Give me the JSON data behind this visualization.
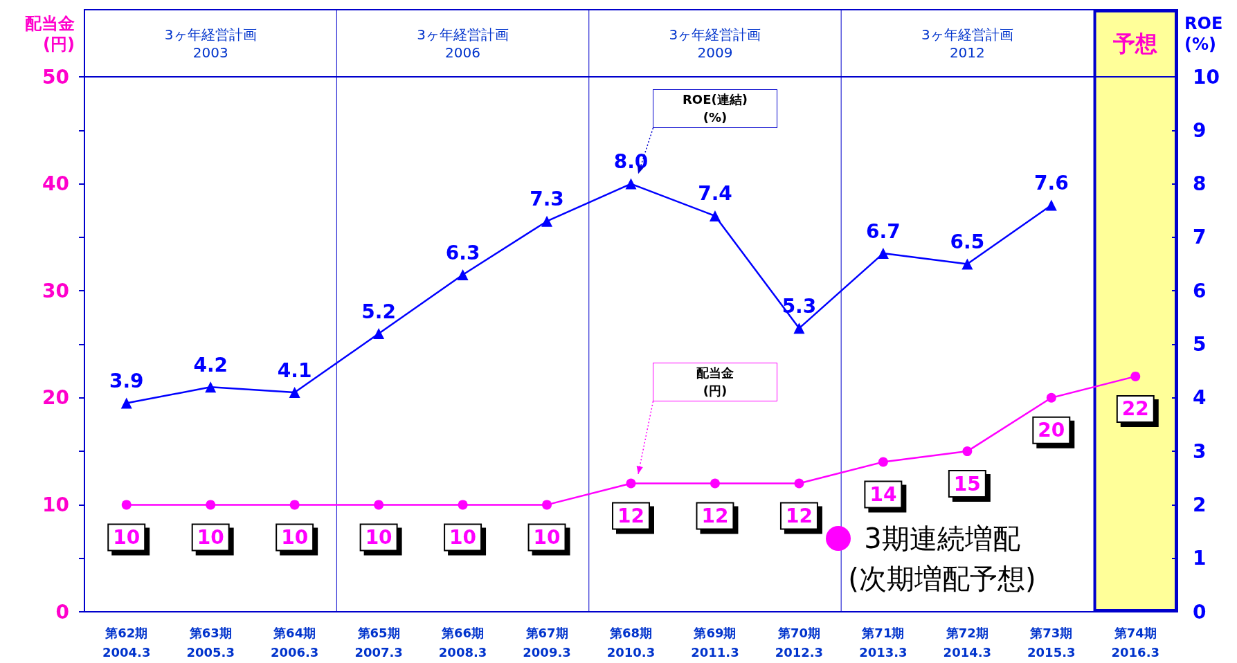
{
  "chart_data": {
    "type": "line",
    "categories": [
      "第62期\n2004.3",
      "第63期\n2005.3",
      "第64期\n2006.3",
      "第65期\n2007.3",
      "第66期\n2008.3",
      "第67期\n2009.3",
      "第68期\n2010.3",
      "第69期\n2011.3",
      "第70期\n2012.3",
      "第71期\n2013.3",
      "第72期\n2014.3",
      "第73期\n2015.3",
      "第74期\n2016.3"
    ],
    "ylabel": "配当金\n(円)",
    "y2label": "ROE\n(%)",
    "series": [
      {
        "color": "#0000ff",
        "axis": "y2",
        "marker": "triangle",
        "values": [
          3.9,
          4.2,
          4.1,
          5.2,
          6.3,
          7.3,
          8.0,
          7.4,
          5.3,
          6.7,
          6.5,
          7.6,
          null
        ],
        "value_labels": [
          "3.9",
          "4.2",
          "4.1",
          "5.2",
          "6.3",
          "7.3",
          "8.0",
          "7.4",
          "5.3",
          "6.7",
          "6.5",
          "7.6",
          null
        ]
      },
      {
        "color": "#ff00ff",
        "marker": "circle",
        "values": [
          10,
          10,
          10,
          10,
          10,
          10,
          12,
          12,
          12,
          14,
          15,
          20,
          22
        ],
        "value_labels": [
          "10",
          "10",
          "10",
          "10",
          "10",
          "10",
          "12",
          "12",
          "12",
          "14",
          "15",
          "20",
          "22"
        ]
      }
    ],
    "ylim": [
      0,
      50
    ],
    "yticks": [
      0,
      {
        "value": 5,
        "label": null
      },
      10,
      {
        "value": 15,
        "label": null
      },
      20,
      {
        "value": 25,
        "label": null
      },
      30,
      {
        "value": 35,
        "label": null
      },
      40,
      {
        "value": 45,
        "label": null
      },
      50
    ],
    "y2lim": [
      0,
      10
    ],
    "y2ticks": [
      0,
      1,
      2,
      3,
      4,
      5,
      6,
      7,
      8,
      9,
      10
    ],
    "bands": [
      {
        "axis": "x",
        "from": "第74期\n2016.3",
        "to": "第74期\n2016.3",
        "label": "予想",
        "color": "#ffff99"
      }
    ],
    "annotations": [
      "3ヶ年経営計画\n2003",
      "3ヶ年経営計画\n2006",
      "3ヶ年経営計画\n2009",
      "3ヶ年経営計画\n2012",
      "ROE(連結)\n(%)",
      "配当金\n(円)",
      "3期連続増配\n(次期増配予想)"
    ],
    "grid": false
  }
}
